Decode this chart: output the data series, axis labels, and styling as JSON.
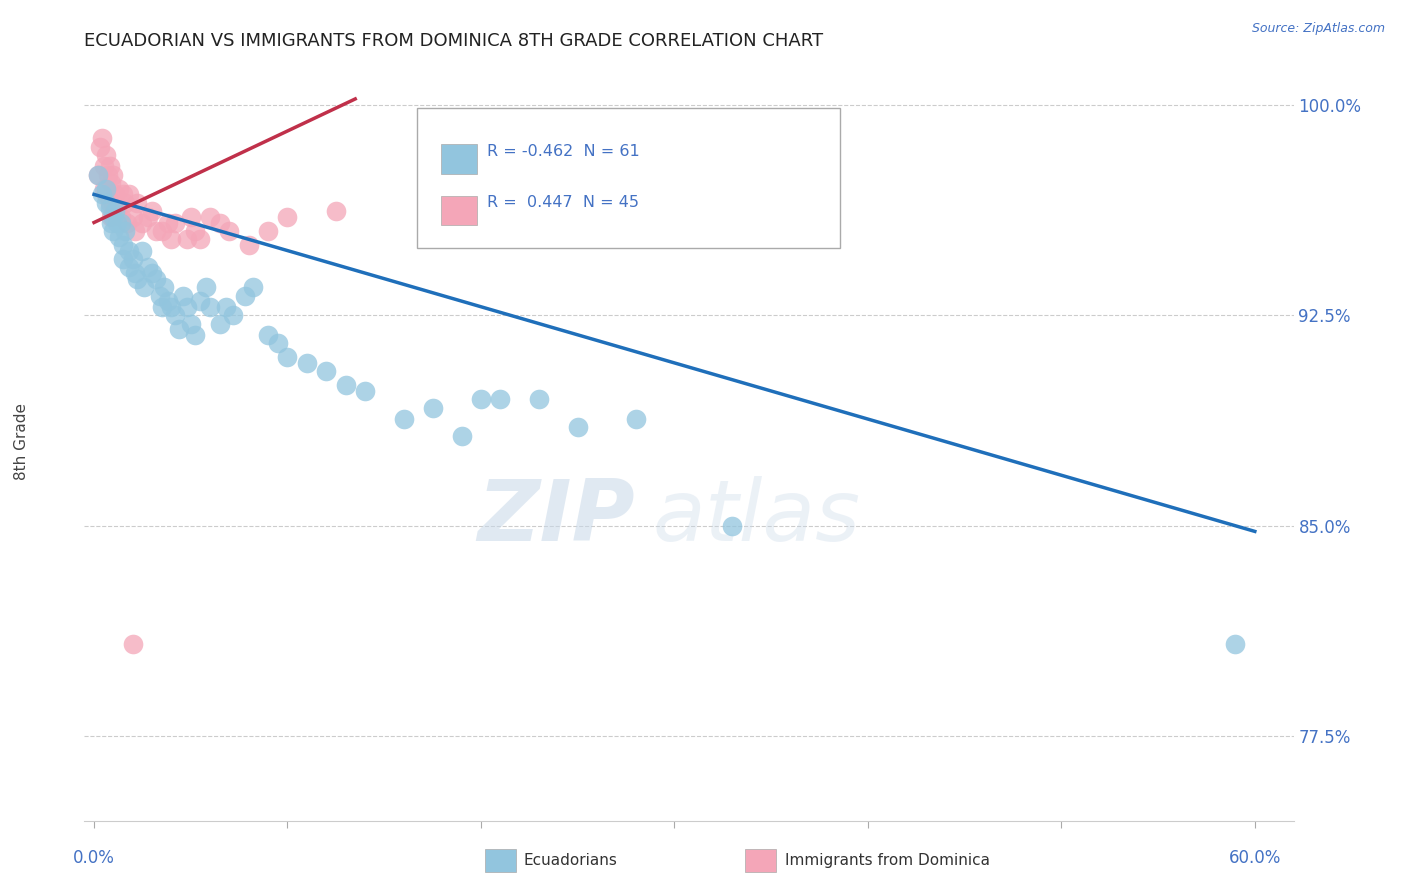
{
  "title": "ECUADORIAN VS IMMIGRANTS FROM DOMINICA 8TH GRADE CORRELATION CHART",
  "source": "Source: ZipAtlas.com",
  "xlabel_blue": "Ecuadorians",
  "xlabel_pink": "Immigrants from Dominica",
  "ylabel": "8th Grade",
  "xlim": [
    -0.005,
    0.62
  ],
  "ylim": [
    0.745,
    1.015
  ],
  "yticks": [
    0.775,
    0.85,
    0.925,
    1.0
  ],
  "ytick_labels": [
    "77.5%",
    "85.0%",
    "92.5%",
    "100.0%"
  ],
  "xtick_left_label": "0.0%",
  "xtick_right_label": "60.0%",
  "legend_r_blue": "-0.462",
  "legend_n_blue": "61",
  "legend_r_pink": "0.447",
  "legend_n_pink": "45",
  "blue_color": "#92c5de",
  "pink_color": "#f4a6b8",
  "blue_line_color": "#1f6fba",
  "pink_line_color": "#c0304a",
  "watermark_zip": "ZIP",
  "watermark_atlas": "atlas",
  "blue_dots_x": [
    0.002,
    0.004,
    0.006,
    0.006,
    0.008,
    0.009,
    0.01,
    0.01,
    0.011,
    0.012,
    0.013,
    0.014,
    0.015,
    0.015,
    0.016,
    0.018,
    0.018,
    0.02,
    0.021,
    0.022,
    0.025,
    0.026,
    0.028,
    0.03,
    0.032,
    0.034,
    0.035,
    0.036,
    0.038,
    0.04,
    0.042,
    0.044,
    0.046,
    0.048,
    0.05,
    0.052,
    0.055,
    0.058,
    0.06,
    0.065,
    0.068,
    0.072,
    0.078,
    0.082,
    0.09,
    0.095,
    0.1,
    0.11,
    0.12,
    0.13,
    0.14,
    0.16,
    0.175,
    0.19,
    0.2,
    0.21,
    0.23,
    0.25,
    0.28,
    0.33,
    0.59
  ],
  "blue_dots_y": [
    0.975,
    0.968,
    0.97,
    0.965,
    0.963,
    0.958,
    0.96,
    0.955,
    0.962,
    0.958,
    0.953,
    0.958,
    0.95,
    0.945,
    0.955,
    0.942,
    0.948,
    0.945,
    0.94,
    0.938,
    0.948,
    0.935,
    0.942,
    0.94,
    0.938,
    0.932,
    0.928,
    0.935,
    0.93,
    0.928,
    0.925,
    0.92,
    0.932,
    0.928,
    0.922,
    0.918,
    0.93,
    0.935,
    0.928,
    0.922,
    0.928,
    0.925,
    0.932,
    0.935,
    0.918,
    0.915,
    0.91,
    0.908,
    0.905,
    0.9,
    0.898,
    0.888,
    0.892,
    0.882,
    0.895,
    0.895,
    0.895,
    0.885,
    0.888,
    0.85,
    0.808
  ],
  "pink_dots_x": [
    0.002,
    0.003,
    0.004,
    0.005,
    0.005,
    0.006,
    0.006,
    0.007,
    0.008,
    0.008,
    0.009,
    0.009,
    0.01,
    0.01,
    0.011,
    0.012,
    0.013,
    0.014,
    0.015,
    0.016,
    0.017,
    0.018,
    0.02,
    0.021,
    0.022,
    0.025,
    0.028,
    0.03,
    0.032,
    0.035,
    0.038,
    0.04,
    0.042,
    0.048,
    0.05,
    0.052,
    0.055,
    0.06,
    0.065,
    0.07,
    0.08,
    0.09,
    0.1,
    0.125,
    0.02
  ],
  "pink_dots_y": [
    0.975,
    0.985,
    0.988,
    0.978,
    0.97,
    0.982,
    0.968,
    0.975,
    0.978,
    0.965,
    0.972,
    0.96,
    0.975,
    0.965,
    0.968,
    0.962,
    0.97,
    0.96,
    0.968,
    0.965,
    0.958,
    0.968,
    0.96,
    0.955,
    0.965,
    0.958,
    0.96,
    0.962,
    0.955,
    0.955,
    0.958,
    0.952,
    0.958,
    0.952,
    0.96,
    0.955,
    0.952,
    0.96,
    0.958,
    0.955,
    0.95,
    0.955,
    0.96,
    0.962,
    0.808
  ],
  "blue_trend_x": [
    0.0,
    0.6
  ],
  "blue_trend_y": [
    0.968,
    0.848
  ],
  "pink_trend_x": [
    0.0,
    0.135
  ],
  "pink_trend_y": [
    0.958,
    1.002
  ]
}
